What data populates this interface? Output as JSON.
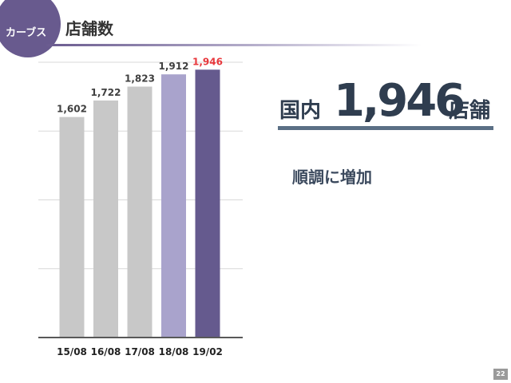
{
  "header": {
    "badge": "カーブス",
    "title": "店舗数"
  },
  "headline": {
    "prefix": "国内",
    "number": "1,946",
    "suffix": "店舗"
  },
  "subhead": "順調に増加",
  "page_number": "22",
  "colors": {
    "badge": "#685a8e",
    "bar_gray": "#c8c8c8",
    "bar_light_purple": "#a9a3cc",
    "bar_dark_purple": "#655a8e",
    "highlight_label": "#e8383d",
    "label_text": "#404040",
    "grid": "#d9d9d9",
    "baseline": "#595959"
  },
  "chart_data": {
    "type": "bar",
    "categories": [
      "15/08",
      "16/08",
      "17/08",
      "18/08",
      "19/02"
    ],
    "values": [
      1602,
      1722,
      1823,
      1912,
      1946
    ],
    "value_labels": [
      "1,602",
      "1,722",
      "1,823",
      "1,912",
      "1,946"
    ],
    "bar_colors": [
      "#c8c8c8",
      "#c8c8c8",
      "#c8c8c8",
      "#a9a3cc",
      "#655a8e"
    ],
    "label_colors": [
      "#404040",
      "#404040",
      "#404040",
      "#404040",
      "#e8383d"
    ],
    "title": "",
    "xlabel": "",
    "ylabel": "",
    "ylim": [
      0,
      2000
    ],
    "gridlines": [
      500,
      1000,
      1500,
      2000
    ],
    "grid": true,
    "legend": "none"
  }
}
